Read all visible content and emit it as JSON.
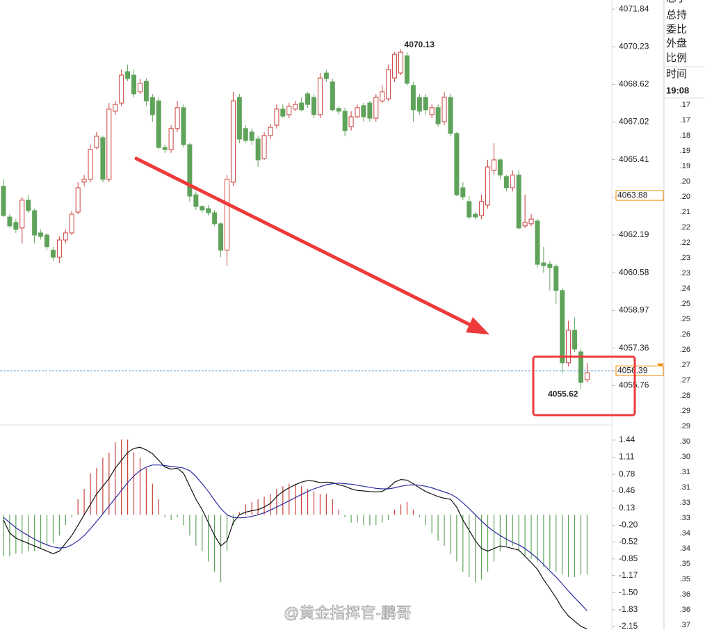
{
  "chart_data": [
    {
      "type": "candlestick",
      "up_color": "#c9403b",
      "down_color": "#5fa35a",
      "ylim": [
        4054.08,
        4072.23
      ],
      "yticks": [
        4055.76,
        4057.36,
        4058.97,
        4060.58,
        4062.19,
        {
          "value": 4063.8,
          "label": "4063.80"
        },
        4065.41,
        4067.02,
        4068.62,
        4070.23,
        4071.84
      ],
      "open": [
        4064.27,
        4062.96,
        4062.73,
        4062.49,
        4063.68,
        4063.23,
        4062.28,
        4062.19,
        4061.54,
        4061.24,
        4061.98,
        4062.28,
        4063.17,
        4064.45,
        4064.57,
        4065.93,
        4066.35,
        4064.57,
        4067.48,
        4067.83,
        4069.17,
        4069.02,
        4068.31,
        4068.76,
        4068.07,
        4067.92,
        4065.93,
        4065.84,
        4066.74,
        4067.63,
        4066.05,
        4063.91,
        4063.41,
        4063.32,
        4063.14,
        4062.67,
        4061.54,
        4064.45,
        4068.07,
        4066.74,
        4066.59,
        4066.29,
        4065.46,
        4066.44,
        4066.88,
        4067.57,
        4067.33,
        4067.57,
        4067.83,
        4068.22,
        4068.07,
        4067.33,
        4069.11,
        4068.73,
        4067.6,
        4067.48,
        4066.82,
        4067.24,
        4067.72,
        4067.83,
        4067.18,
        4067.92,
        4068.01,
        4068.9,
        4069.11,
        4069.85,
        4068.58,
        4068.07,
        4068.07,
        4067.33,
        4067.63,
        4067.03,
        4068.07,
        4066.53,
        4064.21,
        4063.62,
        4063.08,
        4063.02,
        4063.47,
        4064.95,
        4065.4,
        4064.69,
        4064.21,
        4064.75,
        4062.58,
        4062.67,
        4062.79,
        4061.0,
        4060.94,
        4060.85,
        4059.82,
        4056.73,
        4058.12,
        4057.2,
        4056.01
      ],
      "high": [
        4064.57,
        4063.08,
        4062.87,
        4063.82,
        4063.91,
        4063.32,
        4062.43,
        4062.28,
        4061.69,
        4062.13,
        4062.43,
        4063.23,
        4064.45,
        4064.75,
        4066.05,
        4066.59,
        4066.44,
        4067.83,
        4067.92,
        4069.26,
        4069.47,
        4069.26,
        4068.87,
        4068.9,
        4068.22,
        4068.07,
        4066.05,
        4066.88,
        4067.92,
        4067.77,
        4066.11,
        4064.05,
        4063.47,
        4063.47,
        4063.26,
        4062.73,
        4064.75,
        4068.31,
        4068.22,
        4066.88,
        4066.74,
        4066.44,
        4066.59,
        4066.94,
        4067.77,
        4067.77,
        4067.83,
        4067.92,
        4068.07,
        4068.31,
        4068.22,
        4069.11,
        4069.26,
        4068.87,
        4067.69,
        4067.63,
        4067.48,
        4067.77,
        4067.83,
        4067.92,
        4068.22,
        4068.58,
        4069.47,
        4070.0,
        4070.13,
        4070.0,
        4068.73,
        4068.22,
        4068.22,
        4067.77,
        4067.77,
        4068.31,
        4068.22,
        4066.59,
        4064.45,
        4063.85,
        4063.17,
        4063.91,
        4065.4,
        4066.11,
        4065.46,
        4064.75,
        4064.95,
        4064.95,
        4063.91,
        4063.08,
        4062.87,
        4061.69,
        4061.09,
        4060.94,
        4059.92,
        4058.52,
        4058.67,
        4057.32,
        4056.73
      ],
      "low": [
        4062.96,
        4062.49,
        4062.28,
        4061.83,
        4063.14,
        4061.83,
        4062.0,
        4061.54,
        4061.09,
        4061.0,
        4061.83,
        4062.19,
        4063.08,
        4064.27,
        4064.45,
        4065.84,
        4064.45,
        4064.45,
        4067.33,
        4067.69,
        4068.76,
        4068.07,
        4068.22,
        4067.69,
        4067.03,
        4065.84,
        4065.7,
        4065.7,
        4066.59,
        4065.93,
        4063.62,
        4063.26,
        4063.14,
        4063.02,
        4062.58,
        4061.24,
        4060.88,
        4064.27,
        4066.11,
        4066.11,
        4066.05,
        4065.1,
        4065.4,
        4066.29,
        4066.74,
        4067.18,
        4067.18,
        4067.48,
        4067.48,
        4067.63,
        4067.18,
        4067.18,
        4068.73,
        4067.48,
        4067.33,
        4066.41,
        4066.65,
        4067.18,
        4067.03,
        4067.03,
        4067.03,
        4067.83,
        4067.92,
        4068.73,
        4069.02,
        4068.58,
        4067.03,
        4067.33,
        4067.33,
        4067.18,
        4066.82,
        4066.88,
        4066.41,
        4063.85,
        4063.68,
        4062.87,
        4062.87,
        4062.87,
        4063.32,
        4064.75,
        4064.57,
        4064.05,
        4064.05,
        4062.43,
        4062.49,
        4062.58,
        4060.8,
        4060.58,
        4059.82,
        4059.25,
        4056.31,
        4056.58,
        4057.2,
        4055.62,
        4055.89
      ],
      "close": [
        4063.02,
        4062.58,
        4062.43,
        4063.68,
        4063.23,
        4062.19,
        4062.13,
        4061.69,
        4061.24,
        4061.98,
        4062.28,
        4063.08,
        4064.21,
        4064.57,
        4065.84,
        4066.41,
        4064.57,
        4067.57,
        4067.77,
        4069.02,
        4068.87,
        4068.22,
        4068.67,
        4067.92,
        4067.33,
        4065.93,
        4065.84,
        4066.74,
        4067.63,
        4066.05,
        4063.85,
        4063.41,
        4063.26,
        4063.14,
        4062.67,
        4061.54,
        4064.57,
        4067.92,
        4066.29,
        4066.23,
        4066.23,
        4065.4,
        4066.44,
        4066.79,
        4067.57,
        4067.27,
        4067.69,
        4067.77,
        4067.54,
        4067.77,
        4067.33,
        4068.9,
        4068.87,
        4067.54,
        4067.48,
        4066.65,
        4067.24,
        4067.63,
        4067.24,
        4067.18,
        4068.07,
        4068.31,
        4069.26,
        4069.91,
        4070.0,
        4068.67,
        4067.54,
        4067.48,
        4067.54,
        4067.63,
        4066.94,
        4068.07,
        4066.53,
        4063.91,
        4063.82,
        4062.96,
        4062.96,
        4063.62,
        4065.1,
        4065.4,
        4064.75,
        4064.21,
        4064.75,
        4062.49,
        4062.73,
        4062.87,
        4060.94,
        4060.88,
        4060.8,
        4059.82,
        4056.73,
        4058.12,
        4057.32,
        4055.89,
        4056.31
      ],
      "high_label": {
        "value": 4070.13,
        "color": "#d23c3c"
      },
      "low_label": {
        "value": 4055.62,
        "color": "#4f9a4a"
      },
      "price_markers": [
        {
          "value": 4063.88,
          "color": "#f08a00"
        },
        {
          "value": 4056.39,
          "color": "#f08a00",
          "line_color": "#3f88c5"
        }
      ]
    },
    {
      "type": "macd",
      "ylim": [
        -2.22,
        1.72
      ],
      "yticks": [
        1.44,
        1.11,
        0.78,
        0.46,
        0.13,
        {
          "value": -0.2,
          "label": "-0.20"
        },
        -0.52,
        -0.85,
        -1.17,
        {
          "value": -1.5,
          "label": "-1.50"
        },
        -1.83,
        -2.15
      ],
      "histogram": {
        "up_color": "#c9403b",
        "down_color": "#5fa35a",
        "values": [
          -0.8,
          -0.8,
          -0.75,
          -0.75,
          -0.7,
          -0.7,
          -0.65,
          -0.6,
          -0.55,
          -0.4,
          -0.2,
          -0.05,
          0.3,
          0.5,
          0.8,
          0.9,
          1.1,
          1.2,
          1.4,
          1.45,
          1.45,
          1.2,
          1.1,
          0.9,
          0.6,
          0.3,
          -0.05,
          -0.1,
          -0.05,
          -0.2,
          -0.4,
          -0.6,
          -0.7,
          -0.9,
          -1.1,
          -1.3,
          -0.7,
          -0.2,
          0.05,
          0.2,
          0.25,
          0.3,
          0.35,
          0.4,
          0.5,
          0.55,
          0.6,
          0.6,
          0.55,
          0.5,
          0.45,
          0.4,
          0.4,
          0.3,
          0.1,
          -0.05,
          -0.15,
          -0.15,
          -0.2,
          -0.2,
          -0.2,
          -0.15,
          -0.1,
          0.1,
          0.2,
          0.25,
          0.1,
          -0.05,
          -0.2,
          -0.35,
          -0.5,
          -0.6,
          -0.75,
          -0.9,
          -1.1,
          -1.2,
          -1.3,
          -1.25,
          -1.1,
          -0.9,
          -0.7,
          -0.6,
          -0.6,
          -0.7,
          -0.8,
          -0.85,
          -0.9,
          -1.0,
          -1.05,
          -1.1,
          -1.15,
          -1.2,
          -1.2,
          -1.15,
          -1.15
        ]
      },
      "series": [
        {
          "color": "#111111",
          "values": [
            -0.1,
            -0.35,
            -0.45,
            -0.5,
            -0.55,
            -0.6,
            -0.65,
            -0.7,
            -0.75,
            -0.7,
            -0.55,
            -0.4,
            -0.2,
            0.0,
            0.2,
            0.4,
            0.55,
            0.7,
            0.9,
            1.05,
            1.2,
            1.28,
            1.3,
            1.25,
            1.18,
            1.05,
            0.92,
            0.88,
            0.9,
            0.8,
            0.55,
            0.3,
            0.1,
            -0.15,
            -0.4,
            -0.6,
            -0.5,
            -0.15,
            0.0,
            0.05,
            0.08,
            0.1,
            0.15,
            0.22,
            0.35,
            0.45,
            0.52,
            0.58,
            0.63,
            0.66,
            0.65,
            0.62,
            0.63,
            0.62,
            0.58,
            0.55,
            0.5,
            0.47,
            0.46,
            0.45,
            0.44,
            0.45,
            0.52,
            0.63,
            0.68,
            0.67,
            0.6,
            0.52,
            0.45,
            0.4,
            0.35,
            0.32,
            0.3,
            0.15,
            -0.1,
            -0.3,
            -0.5,
            -0.65,
            -0.7,
            -0.65,
            -0.6,
            -0.62,
            -0.65,
            -0.68,
            -0.8,
            -0.92,
            -1.05,
            -1.25,
            -1.42,
            -1.6,
            -1.8,
            -1.95,
            -2.05,
            -2.15,
            -2.2
          ]
        },
        {
          "color": "#2b2ba0",
          "values": [
            -0.05,
            -0.15,
            -0.25,
            -0.33,
            -0.4,
            -0.47,
            -0.53,
            -0.58,
            -0.62,
            -0.64,
            -0.63,
            -0.58,
            -0.5,
            -0.4,
            -0.27,
            -0.13,
            0.02,
            0.17,
            0.32,
            0.47,
            0.62,
            0.75,
            0.85,
            0.92,
            0.96,
            0.96,
            0.95,
            0.93,
            0.92,
            0.9,
            0.85,
            0.74,
            0.6,
            0.45,
            0.28,
            0.12,
            0.0,
            -0.05,
            -0.06,
            -0.05,
            -0.03,
            0.0,
            0.04,
            0.09,
            0.15,
            0.21,
            0.27,
            0.33,
            0.39,
            0.45,
            0.5,
            0.54,
            0.58,
            0.6,
            0.61,
            0.6,
            0.59,
            0.57,
            0.55,
            0.53,
            0.51,
            0.5,
            0.5,
            0.52,
            0.55,
            0.57,
            0.58,
            0.57,
            0.55,
            0.52,
            0.48,
            0.44,
            0.4,
            0.33,
            0.23,
            0.12,
            0.0,
            -0.12,
            -0.23,
            -0.32,
            -0.4,
            -0.47,
            -0.53,
            -0.58,
            -0.65,
            -0.74,
            -0.84,
            -0.96,
            -1.08,
            -1.2,
            -1.33,
            -1.47,
            -1.6,
            -1.72,
            -1.85
          ]
        }
      ]
    }
  ],
  "side_panel": {
    "labels": [
      "总手",
      "总持",
      "委比",
      "外盘",
      "比例",
      "时间"
    ],
    "time": "19:08",
    "rows": [
      ".17",
      ".17",
      ".18",
      ".19",
      ".19",
      ".20",
      ".20",
      ".21",
      ".22",
      ".22",
      ".23",
      ".23",
      ".24",
      ".25",
      ".25",
      ".26",
      ".26",
      ".27",
      ".27",
      ".28",
      ".29",
      ".29",
      ".30",
      ".30",
      ".31",
      ".31",
      ".33",
      ".33",
      ".34",
      ".34",
      ".35",
      ".35",
      ".36",
      ".36",
      ".37"
    ]
  },
  "watermark": "@黄金指挥官-鹏哥"
}
